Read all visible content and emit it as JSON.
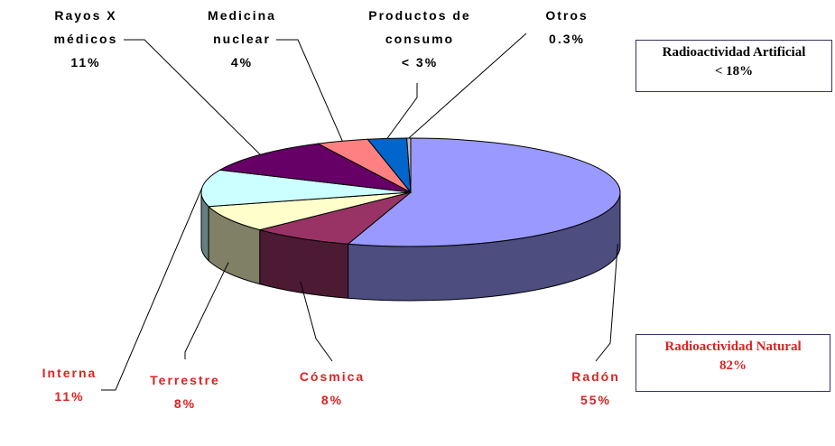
{
  "chart_data": {
    "type": "pie3d",
    "categories": [
      "Radón",
      "Cósmica",
      "Terrestre",
      "Interna",
      "Rayos X médicos",
      "Medicina nuclear",
      "Productos de consumo",
      "Otros"
    ],
    "values": [
      55,
      8,
      8,
      11,
      11,
      4,
      3,
      0.3
    ],
    "value_labels": [
      "55%",
      "8%",
      "8%",
      "11%",
      "11%",
      "4%",
      "< 3%",
      "0.3%"
    ],
    "colors": [
      "#9999ff",
      "#993366",
      "#ffffcc",
      "#ccffff",
      "#660066",
      "#ff8080",
      "#0066cc",
      "#c0c0c0"
    ],
    "annotations": [
      {
        "title": "Radioactividad Artificial",
        "label": "< 18%"
      },
      {
        "title": "Radioactividad Natural",
        "label": "82%"
      }
    ]
  }
}
